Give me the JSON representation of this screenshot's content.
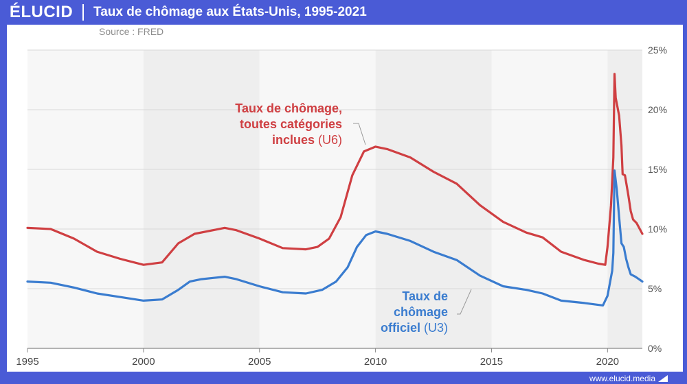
{
  "brand": {
    "logo": "ÉLUCID",
    "website": "www.elucid.media"
  },
  "chart_data": {
    "type": "line",
    "title": "Taux de chômage aux États-Unis, 1995-2021",
    "source": "Source : FRED",
    "xlim": [
      1995,
      2021.5
    ],
    "ylim": [
      0,
      25
    ],
    "x_ticks": [
      "1995",
      "2000",
      "2005",
      "2010",
      "2015",
      "2020"
    ],
    "y_ticks": [
      "0%",
      "5%",
      "10%",
      "15%",
      "20%",
      "25%"
    ],
    "shaded_bands": [
      [
        1995,
        2000
      ],
      [
        2000,
        2005
      ],
      [
        2005,
        2010
      ],
      [
        2010,
        2015
      ],
      [
        2015,
        2020
      ],
      [
        2020,
        2021.5
      ]
    ],
    "series": [
      {
        "name": "Taux de chômage, toutes catégories inclues (U6)",
        "annotation": {
          "lines": [
            "Taux de chômage,",
            "toutes catégories",
            "inclues"
          ],
          "suffix": "(U6)"
        },
        "color": "#cf3f42",
        "points": [
          [
            1995.0,
            10.1
          ],
          [
            1996.0,
            10.0
          ],
          [
            1997.0,
            9.2
          ],
          [
            1998.0,
            8.1
          ],
          [
            1999.0,
            7.5
          ],
          [
            2000.0,
            7.0
          ],
          [
            2000.8,
            7.2
          ],
          [
            2001.5,
            8.8
          ],
          [
            2002.2,
            9.6
          ],
          [
            2003.0,
            9.9
          ],
          [
            2003.5,
            10.1
          ],
          [
            2004.0,
            9.9
          ],
          [
            2005.0,
            9.2
          ],
          [
            2006.0,
            8.4
          ],
          [
            2007.0,
            8.3
          ],
          [
            2007.5,
            8.5
          ],
          [
            2008.0,
            9.2
          ],
          [
            2008.5,
            11.0
          ],
          [
            2009.0,
            14.5
          ],
          [
            2009.5,
            16.5
          ],
          [
            2010.0,
            16.9
          ],
          [
            2010.5,
            16.7
          ],
          [
            2011.5,
            16.0
          ],
          [
            2012.5,
            14.8
          ],
          [
            2013.5,
            13.8
          ],
          [
            2014.5,
            12.0
          ],
          [
            2015.5,
            10.6
          ],
          [
            2016.5,
            9.7
          ],
          [
            2017.2,
            9.3
          ],
          [
            2018.0,
            8.1
          ],
          [
            2019.0,
            7.4
          ],
          [
            2019.6,
            7.1
          ],
          [
            2019.9,
            7.0
          ],
          [
            2020.0,
            8.5
          ],
          [
            2020.15,
            12.0
          ],
          [
            2020.25,
            16.0
          ],
          [
            2020.3,
            23.0
          ],
          [
            2020.35,
            21.0
          ],
          [
            2020.5,
            19.5
          ],
          [
            2020.6,
            17.0
          ],
          [
            2020.65,
            14.6
          ],
          [
            2020.75,
            14.5
          ],
          [
            2020.9,
            12.8
          ],
          [
            2021.0,
            11.5
          ],
          [
            2021.1,
            10.8
          ],
          [
            2021.25,
            10.5
          ],
          [
            2021.5,
            9.6
          ]
        ]
      },
      {
        "name": "Taux de chômage officiel (U3)",
        "annotation": {
          "lines": [
            "Taux de",
            "chômage",
            "officiel"
          ],
          "suffix": "(U3)"
        },
        "color": "#3a7ccf",
        "points": [
          [
            1995.0,
            5.6
          ],
          [
            1996.0,
            5.5
          ],
          [
            1997.0,
            5.1
          ],
          [
            1998.0,
            4.6
          ],
          [
            1999.0,
            4.3
          ],
          [
            2000.0,
            4.0
          ],
          [
            2000.8,
            4.1
          ],
          [
            2001.5,
            4.9
          ],
          [
            2002.0,
            5.6
          ],
          [
            2002.5,
            5.8
          ],
          [
            2003.0,
            5.9
          ],
          [
            2003.5,
            6.0
          ],
          [
            2004.0,
            5.8
          ],
          [
            2005.0,
            5.2
          ],
          [
            2006.0,
            4.7
          ],
          [
            2007.0,
            4.6
          ],
          [
            2007.7,
            4.9
          ],
          [
            2008.3,
            5.6
          ],
          [
            2008.8,
            6.8
          ],
          [
            2009.2,
            8.5
          ],
          [
            2009.6,
            9.5
          ],
          [
            2010.0,
            9.8
          ],
          [
            2010.5,
            9.6
          ],
          [
            2011.5,
            9.0
          ],
          [
            2012.5,
            8.1
          ],
          [
            2013.5,
            7.4
          ],
          [
            2014.5,
            6.1
          ],
          [
            2015.5,
            5.2
          ],
          [
            2016.5,
            4.9
          ],
          [
            2017.2,
            4.6
          ],
          [
            2018.0,
            4.0
          ],
          [
            2019.0,
            3.8
          ],
          [
            2019.8,
            3.6
          ],
          [
            2020.0,
            4.4
          ],
          [
            2020.2,
            6.5
          ],
          [
            2020.25,
            8.0
          ],
          [
            2020.3,
            14.9
          ],
          [
            2020.4,
            13.3
          ],
          [
            2020.5,
            11.0
          ],
          [
            2020.6,
            8.8
          ],
          [
            2020.7,
            8.5
          ],
          [
            2020.8,
            7.5
          ],
          [
            2020.9,
            6.8
          ],
          [
            2021.0,
            6.2
          ],
          [
            2021.2,
            6.0
          ],
          [
            2021.5,
            5.6
          ]
        ]
      }
    ]
  }
}
